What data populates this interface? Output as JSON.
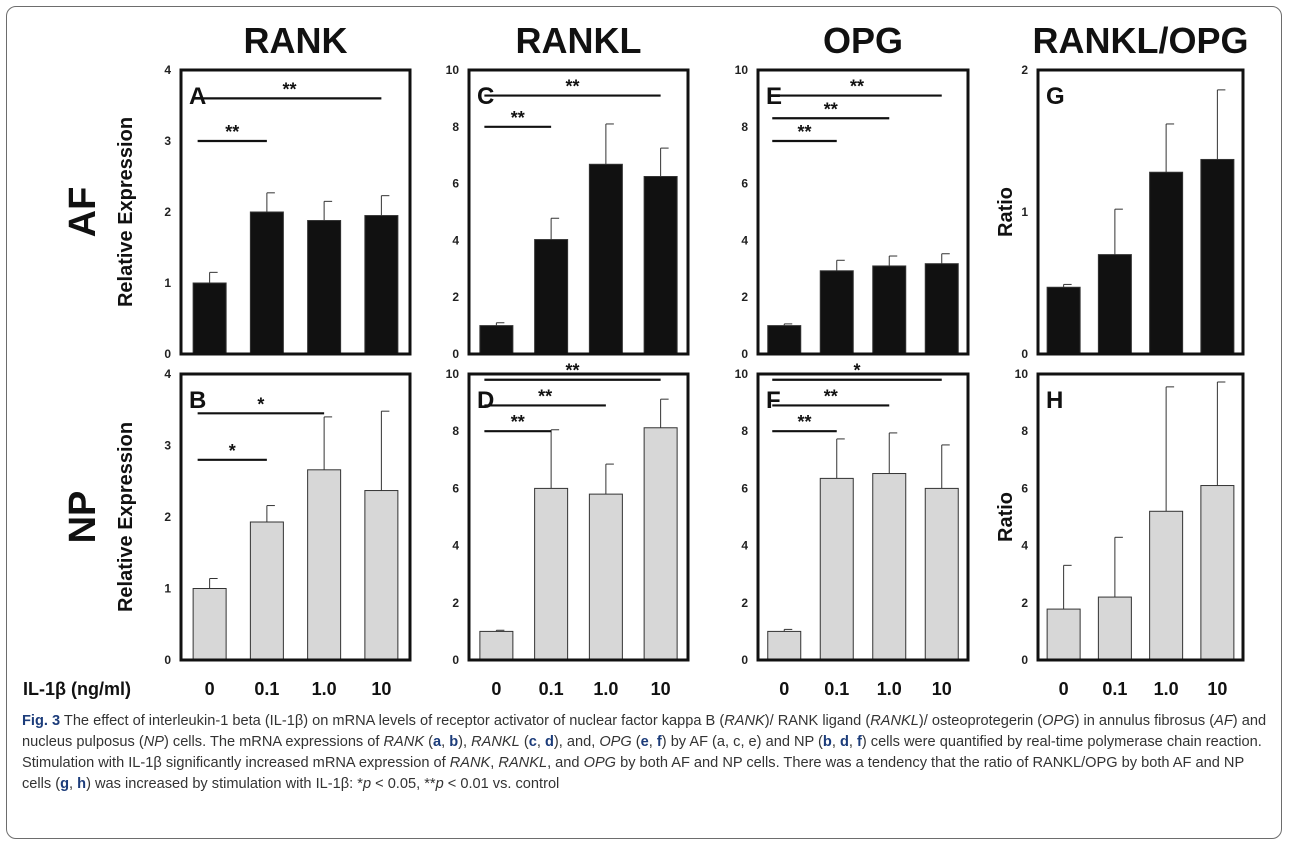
{
  "chart_data": [
    {
      "type": "bar",
      "panel": "A",
      "title": "RANK",
      "row": "AF",
      "ylabel": "Relative Expression",
      "ylim": [
        0,
        4
      ],
      "yticks": [
        0,
        1,
        2,
        3,
        4
      ],
      "categories": [
        "0",
        "0.1",
        "1.0",
        "10"
      ],
      "values": [
        1.0,
        2.0,
        1.88,
        1.95
      ],
      "errors": [
        0.15,
        0.27,
        0.27,
        0.28
      ],
      "color": "#111111",
      "sig": [
        {
          "from": 0,
          "to": 1,
          "level": 3.0,
          "label": "**"
        },
        {
          "from": 0,
          "to": 3,
          "level": 3.6,
          "label": "**"
        }
      ]
    },
    {
      "type": "bar",
      "panel": "C",
      "title": "RANKL",
      "row": "AF",
      "ylabel": "",
      "ylim": [
        0,
        10
      ],
      "yticks": [
        0,
        2,
        4,
        6,
        8,
        10
      ],
      "categories": [
        "0",
        "0.1",
        "1.0",
        "10"
      ],
      "values": [
        1.0,
        4.03,
        6.68,
        6.25
      ],
      "errors": [
        0.1,
        0.75,
        1.42,
        1.0
      ],
      "color": "#111111",
      "sig": [
        {
          "from": 0,
          "to": 1,
          "level": 8.0,
          "label": "**"
        },
        {
          "from": 0,
          "to": 3,
          "level": 9.1,
          "label": "**"
        }
      ]
    },
    {
      "type": "bar",
      "panel": "E",
      "title": "OPG",
      "row": "AF",
      "ylabel": "",
      "ylim": [
        0,
        10
      ],
      "yticks": [
        0,
        2,
        4,
        6,
        8,
        10
      ],
      "categories": [
        "0",
        "0.1",
        "1.0",
        "10"
      ],
      "values": [
        1.0,
        2.93,
        3.1,
        3.18
      ],
      "errors": [
        0.06,
        0.37,
        0.35,
        0.35
      ],
      "color": "#111111",
      "sig": [
        {
          "from": 0,
          "to": 1,
          "level": 7.5,
          "label": "**"
        },
        {
          "from": 0,
          "to": 2,
          "level": 8.3,
          "label": "**"
        },
        {
          "from": 0,
          "to": 3,
          "level": 9.1,
          "label": "**"
        }
      ]
    },
    {
      "type": "bar",
      "panel": "G",
      "title": "RANKL/OPG",
      "row": "AF",
      "ylabel": "Ratio",
      "ylim": [
        0,
        2
      ],
      "yticks": [
        0,
        1,
        2
      ],
      "categories": [
        "0",
        "0.1",
        "1.0",
        "10"
      ],
      "values": [
        0.47,
        0.7,
        1.28,
        1.37
      ],
      "errors": [
        0.02,
        0.32,
        0.34,
        0.49
      ],
      "color": "#111111",
      "sig": []
    },
    {
      "type": "bar",
      "panel": "B",
      "title": "",
      "row": "NP",
      "ylabel": "Relative Expression",
      "ylim": [
        0,
        4
      ],
      "yticks": [
        0,
        1,
        2,
        3,
        4
      ],
      "categories": [
        "0",
        "0.1",
        "1.0",
        "10"
      ],
      "values": [
        1.0,
        1.93,
        2.66,
        2.37
      ],
      "errors": [
        0.14,
        0.23,
        0.74,
        1.11
      ],
      "color": "#d7d7d7",
      "sig": [
        {
          "from": 0,
          "to": 1,
          "level": 2.8,
          "label": "*"
        },
        {
          "from": 0,
          "to": 2,
          "level": 3.45,
          "label": "*"
        }
      ]
    },
    {
      "type": "bar",
      "panel": "D",
      "title": "",
      "row": "NP",
      "ylabel": "",
      "ylim": [
        0,
        10
      ],
      "yticks": [
        0,
        2,
        4,
        6,
        8,
        10
      ],
      "categories": [
        "0",
        "0.1",
        "1.0",
        "10"
      ],
      "values": [
        1.0,
        6.0,
        5.8,
        8.12
      ],
      "errors": [
        0.04,
        2.05,
        1.05,
        1.0
      ],
      "color": "#d7d7d7",
      "sig": [
        {
          "from": 0,
          "to": 1,
          "level": 8.0,
          "label": "**"
        },
        {
          "from": 0,
          "to": 2,
          "level": 8.9,
          "label": "**"
        },
        {
          "from": 0,
          "to": 3,
          "level": 9.8,
          "label": "**"
        }
      ]
    },
    {
      "type": "bar",
      "panel": "F",
      "title": "",
      "row": "NP",
      "ylabel": "",
      "ylim": [
        0,
        10
      ],
      "yticks": [
        0,
        2,
        4,
        6,
        8,
        10
      ],
      "categories": [
        "0",
        "0.1",
        "1.0",
        "10"
      ],
      "values": [
        1.0,
        6.35,
        6.52,
        6.0
      ],
      "errors": [
        0.07,
        1.38,
        1.42,
        1.52
      ],
      "color": "#d7d7d7",
      "sig": [
        {
          "from": 0,
          "to": 1,
          "level": 8.0,
          "label": "**"
        },
        {
          "from": 0,
          "to": 2,
          "level": 8.9,
          "label": "**"
        },
        {
          "from": 0,
          "to": 3,
          "level": 9.8,
          "label": "*"
        }
      ]
    },
    {
      "type": "bar",
      "panel": "H",
      "title": "",
      "row": "NP",
      "ylabel": "Ratio",
      "ylim": [
        0,
        10
      ],
      "yticks": [
        0,
        2,
        4,
        6,
        8,
        10
      ],
      "categories": [
        "0",
        "0.1",
        "1.0",
        "10"
      ],
      "values": [
        1.78,
        2.2,
        5.2,
        6.1
      ],
      "errors": [
        1.53,
        2.09,
        4.35,
        3.62
      ],
      "color": "#d7d7d7",
      "sig": []
    }
  ],
  "row_labels": [
    "AF",
    "NP"
  ],
  "x_axis_title": "IL-1β (ng/ml)",
  "caption": {
    "label": "Fig. 3",
    "t1": " The effect of interleukin-1 beta (IL-1β) on mRNA levels of receptor activator of nuclear factor kappa B (",
    "rank": "RANK",
    "t2": ")/ RANK ligand (",
    "rankl": "RANKL",
    "t3": ")/ osteoprotegerin (",
    "opg": "OPG",
    "t4": ") in annulus fibrosus (",
    "af": "AF",
    "t5": ") and nucleus pulposus (",
    "np": "NP",
    "t6": ") cells. The mRNA expressions of ",
    "rank2": "RANK",
    "t7": " (",
    "a": "a",
    "sep1": ", ",
    "b": "b",
    "t8": "), ",
    "rankl2": "RANKL",
    "t9": " (",
    "c": "c",
    "sep2": ", ",
    "d": "d",
    "t10": "), and, ",
    "opg2": "OPG",
    "t11": " (",
    "e": "e",
    "sep3": ", ",
    "f": "f",
    "t12": ") by AF (a, c, e) and NP (",
    "b2": "b",
    "sep4": ", ",
    "d2": "d",
    "sep5": ", ",
    "f2": "f",
    "t13": ") cells were quantified by real-time polymerase chain reaction. Stimulation with IL-1β significantly increased mRNA expression of ",
    "rank3": "RANK",
    "t14": ", ",
    "rankl3": "RANKL",
    "t15": ", and ",
    "opg3": "OPG",
    "t16": " by both AF and NP cells. There was a tendency that the ratio of RANKL/OPG by both AF and NP cells (",
    "g": "g",
    "sep6": ", ",
    "h": "h",
    "t17": ") was increased by stimulation with IL-1β: *",
    "p1": "p",
    "t18": " < 0.05, **",
    "p2": "p",
    "t19": " < 0.01 vs. control"
  }
}
